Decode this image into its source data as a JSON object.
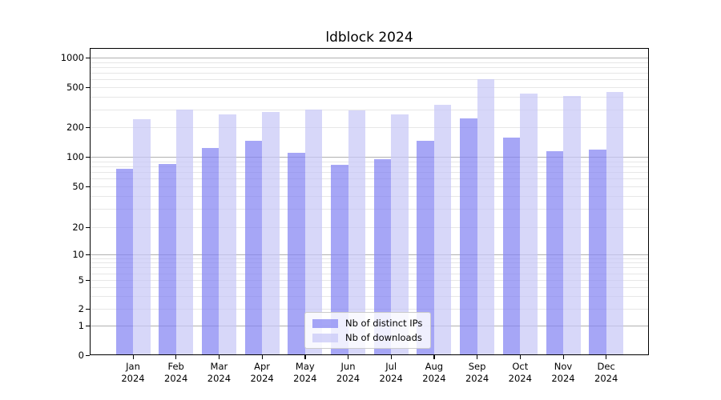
{
  "title": "ldblock 2024",
  "colors": {
    "bar_distinct_ips": "rgba(131,131,242,0.72)",
    "bar_downloads": "rgba(199,199,246,0.72)",
    "major_grid": "#b0b0b0",
    "minor_grid": "#e7e7e7",
    "axis": "#000000",
    "legend_border": "#cccccc"
  },
  "chart_data": {
    "type": "bar",
    "title": "ldblock 2024",
    "categories": [
      "Jan",
      "Feb",
      "Mar",
      "Apr",
      "May",
      "Jun",
      "Jul",
      "Aug",
      "Sep",
      "Oct",
      "Nov",
      "Dec"
    ],
    "year": "2024",
    "series": [
      {
        "name": "Nb of distinct IPs",
        "color_key": "bar_distinct_ips",
        "values": [
          75,
          85,
          123,
          145,
          110,
          83,
          95,
          145,
          245,
          157,
          115,
          118
        ]
      },
      {
        "name": "Nb of downloads",
        "color_key": "bar_downloads",
        "values": [
          240,
          300,
          270,
          285,
          300,
          295,
          270,
          335,
          600,
          430,
          405,
          445
        ]
      }
    ],
    "yticks": [
      0,
      1,
      2,
      5,
      10,
      20,
      50,
      100,
      200,
      500,
      1000
    ],
    "ytick_labels": [
      "0",
      "1",
      "2",
      "5",
      "10",
      "20",
      "50",
      "100",
      "200",
      "500",
      "1000"
    ],
    "major_grid_values": [
      1,
      10,
      100,
      1000
    ],
    "yscale": "symlog",
    "ylim": [
      0,
      1000
    ],
    "grid": "on",
    "legend_position": "bottom-center",
    "xlabel": "",
    "ylabel": ""
  }
}
